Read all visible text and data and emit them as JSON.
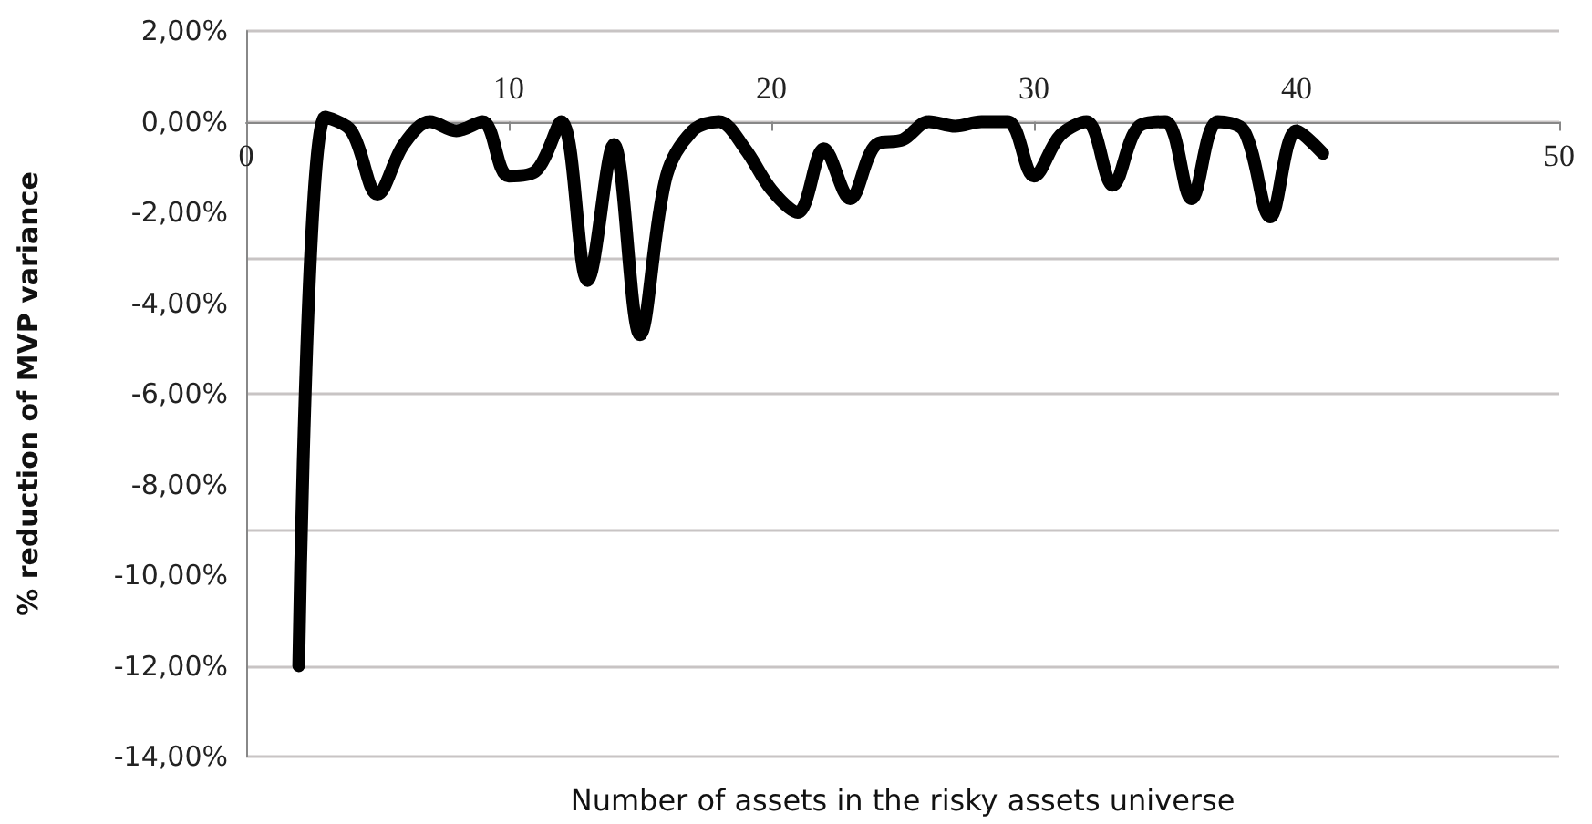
{
  "chart_data": {
    "type": "line",
    "xlabel": "Number of assets in the risky assets universe",
    "ylabel": "% reduction of MVP variance",
    "x": [
      2,
      3,
      4,
      5,
      6,
      7,
      8,
      9,
      10,
      11,
      12,
      13,
      14,
      15,
      16,
      17,
      18,
      19,
      20,
      21,
      22,
      23,
      24,
      25,
      26,
      27,
      28,
      29,
      30,
      31,
      32,
      33,
      34,
      35,
      36,
      37,
      38,
      39,
      40,
      41
    ],
    "series": [
      {
        "color": "#000000",
        "values": [
          -12.0,
          0.1,
          -0.2,
          -1.6,
          -0.5,
          0.0,
          -0.2,
          0.0,
          -1.2,
          -1.1,
          0.0,
          -3.5,
          -0.5,
          -4.7,
          -1.2,
          -0.2,
          0.0,
          -0.6,
          -1.5,
          -2.0,
          -0.6,
          -1.7,
          -0.5,
          -0.4,
          0.0,
          -0.1,
          0.0,
          0.0,
          -1.2,
          -0.3,
          0.0,
          -1.4,
          -0.1,
          0.0,
          -1.7,
          0.0,
          -0.2,
          -2.1,
          -0.2,
          -0.7
        ]
      }
    ],
    "xlim": [
      0,
      50
    ],
    "xticks": [
      0,
      {
        "value": 10,
        "label": null
      },
      {
        "value": 20,
        "label": null
      },
      {
        "value": 30,
        "label": null
      },
      {
        "value": 40,
        "label": null
      },
      50
    ],
    "x2lim": [
      0,
      50
    ],
    "x2ticks": [
      10,
      20,
      30,
      40
    ],
    "ylim": [
      -14,
      2
    ],
    "yticks": [
      {
        "value": -14,
        "label": "-14,00%"
      },
      {
        "value": -12,
        "label": "-12,00%"
      },
      {
        "value": -10,
        "label": "-10,00%"
      },
      {
        "value": -8,
        "label": "-8,00%"
      },
      {
        "value": -6,
        "label": "-6,00%"
      },
      {
        "value": -4,
        "label": "-4,00%"
      },
      {
        "value": -2,
        "label": "-2,00%"
      },
      {
        "value": 0,
        "label": "0,00%"
      },
      {
        "value": 2,
        "label": "2,00%"
      }
    ],
    "grid": "y",
    "line_style": "solid"
  }
}
